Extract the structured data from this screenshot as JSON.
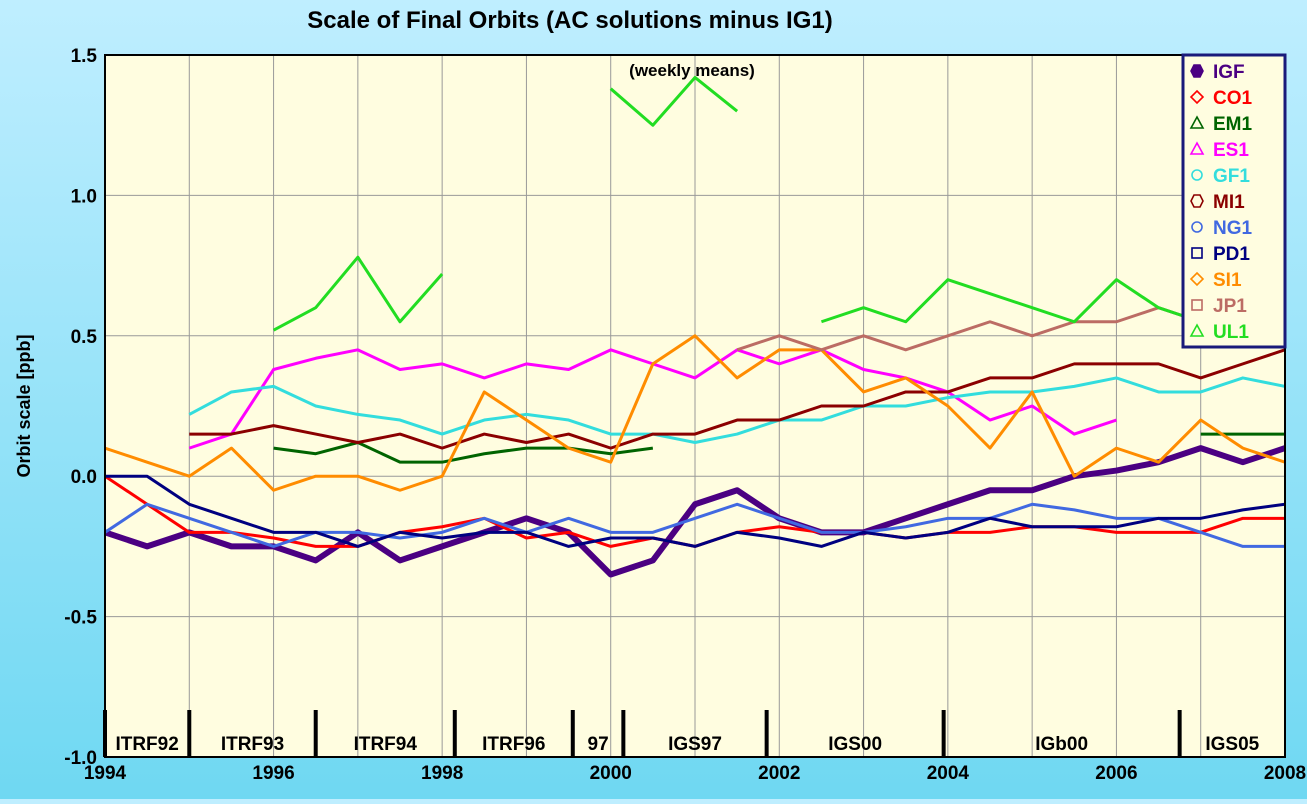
{
  "chart_data": {
    "type": "line",
    "title": "Scale of Final Orbits (AC solutions minus IG1)",
    "annotation": "(weekly means)",
    "y_label": "Orbit scale [ppb]",
    "x": [
      1994,
      1994.5,
      1995,
      1995.5,
      1996,
      1996.5,
      1997,
      1997.5,
      1998,
      1998.5,
      1999,
      1999.5,
      2000,
      2000.5,
      2001,
      2001.5,
      2002,
      2002.5,
      2003,
      2003.5,
      2004,
      2004.5,
      2005,
      2005.5,
      2006,
      2006.5,
      2007,
      2007.5,
      2008
    ],
    "series": [
      {
        "name": "IGF",
        "color": "#4b0082",
        "marker": "hexagon",
        "filled": true,
        "values": [
          -0.2,
          -0.25,
          -0.2,
          -0.25,
          -0.25,
          -0.3,
          -0.2,
          -0.3,
          -0.25,
          -0.2,
          -0.15,
          -0.2,
          -0.35,
          -0.3,
          -0.1,
          -0.05,
          -0.15,
          -0.2,
          -0.2,
          -0.15,
          -0.1,
          -0.05,
          -0.05,
          0.0,
          0.02,
          0.05,
          0.1,
          0.05,
          0.1
        ]
      },
      {
        "name": "CO1",
        "color": "#ff0000",
        "marker": "diamond",
        "values": [
          0.0,
          -0.1,
          -0.2,
          -0.2,
          -0.22,
          -0.25,
          -0.25,
          -0.2,
          -0.18,
          -0.15,
          -0.22,
          -0.2,
          -0.25,
          -0.22,
          -0.25,
          -0.2,
          -0.18,
          -0.2,
          -0.2,
          -0.22,
          -0.2,
          -0.2,
          -0.18,
          -0.18,
          -0.2,
          -0.2,
          -0.2,
          -0.15,
          -0.15
        ]
      },
      {
        "name": "EM1",
        "color": "#006400",
        "marker": "triangle",
        "values": [
          null,
          null,
          null,
          null,
          0.1,
          0.08,
          0.12,
          0.05,
          0.05,
          0.08,
          0.1,
          0.1,
          0.08,
          0.1,
          null,
          null,
          null,
          null,
          null,
          null,
          null,
          null,
          null,
          null,
          null,
          null,
          0.15,
          0.15,
          0.15
        ]
      },
      {
        "name": "ES1",
        "color": "#ff00ff",
        "marker": "triangle",
        "values": [
          null,
          null,
          0.1,
          0.15,
          0.38,
          0.42,
          0.45,
          0.38,
          0.4,
          0.35,
          0.4,
          0.38,
          0.45,
          0.4,
          0.35,
          0.45,
          0.4,
          0.45,
          0.38,
          0.35,
          0.3,
          0.2,
          0.25,
          0.15,
          0.2,
          null,
          null,
          null,
          null
        ]
      },
      {
        "name": "GF1",
        "color": "#33dddd",
        "marker": "circle",
        "values": [
          null,
          null,
          0.22,
          0.3,
          0.32,
          0.25,
          0.22,
          0.2,
          0.15,
          0.2,
          0.22,
          0.2,
          0.15,
          0.15,
          0.12,
          0.15,
          0.2,
          0.2,
          0.25,
          0.25,
          0.28,
          0.3,
          0.3,
          0.32,
          0.35,
          0.3,
          0.3,
          0.35,
          0.32
        ]
      },
      {
        "name": "MI1",
        "color": "#8b0000",
        "marker": "hexagon",
        "values": [
          null,
          null,
          0.15,
          0.15,
          0.18,
          0.15,
          0.12,
          0.15,
          0.1,
          0.15,
          0.12,
          0.15,
          0.1,
          0.15,
          0.15,
          0.2,
          0.2,
          0.25,
          0.25,
          0.3,
          0.3,
          0.35,
          0.35,
          0.4,
          0.4,
          0.4,
          0.35,
          0.4,
          0.45
        ]
      },
      {
        "name": "NG1",
        "color": "#4169e1",
        "marker": "circle",
        "values": [
          -0.2,
          -0.1,
          -0.15,
          -0.2,
          -0.25,
          -0.2,
          -0.2,
          -0.22,
          -0.2,
          -0.15,
          -0.2,
          -0.15,
          -0.2,
          -0.2,
          -0.15,
          -0.1,
          -0.15,
          -0.2,
          -0.2,
          -0.18,
          -0.15,
          -0.15,
          -0.1,
          -0.12,
          -0.15,
          -0.15,
          -0.2,
          -0.25,
          -0.25
        ]
      },
      {
        "name": "PD1",
        "color": "#000080",
        "marker": "square",
        "values": [
          0.0,
          0.0,
          -0.1,
          -0.15,
          -0.2,
          -0.2,
          -0.25,
          -0.2,
          -0.22,
          -0.2,
          -0.2,
          -0.25,
          -0.22,
          -0.22,
          -0.25,
          -0.2,
          -0.22,
          -0.25,
          -0.2,
          -0.22,
          -0.2,
          -0.15,
          -0.18,
          -0.18,
          -0.18,
          -0.15,
          -0.15,
          -0.12,
          -0.1
        ]
      },
      {
        "name": "SI1",
        "color": "#ff8c00",
        "marker": "diamond",
        "values": [
          0.1,
          0.05,
          0.0,
          0.1,
          -0.05,
          0.0,
          0.0,
          -0.05,
          0.0,
          0.3,
          0.2,
          0.1,
          0.05,
          0.4,
          0.5,
          0.35,
          0.45,
          0.45,
          0.3,
          0.35,
          0.25,
          0.1,
          0.3,
          0.0,
          0.1,
          0.05,
          0.2,
          0.1,
          0.05
        ]
      },
      {
        "name": "JP1",
        "color": "#bc6c64",
        "marker": "square",
        "values": [
          null,
          null,
          null,
          null,
          null,
          null,
          null,
          null,
          null,
          null,
          null,
          null,
          null,
          null,
          null,
          0.45,
          0.5,
          0.45,
          0.5,
          0.45,
          0.5,
          0.55,
          0.5,
          0.55,
          0.55,
          0.6,
          0.55,
          0.6,
          0.6
        ]
      },
      {
        "name": "UL1",
        "color": "#22dd22",
        "marker": "triangle",
        "values": [
          null,
          null,
          null,
          null,
          0.52,
          0.6,
          0.78,
          0.55,
          0.72,
          null,
          null,
          null,
          1.38,
          1.25,
          1.42,
          1.3,
          null,
          0.55,
          0.6,
          0.55,
          0.7,
          0.65,
          0.6,
          0.55,
          0.7,
          0.6,
          0.55,
          null,
          null
        ]
      }
    ],
    "xlim": [
      1994,
      2008
    ],
    "xticks": [
      1994,
      1996,
      1998,
      2000,
      2002,
      2004,
      2006,
      2008
    ],
    "x_minor_ticks": [
      1995,
      1997,
      1999,
      2001,
      2003,
      2005,
      2007
    ],
    "ylim": [
      -1.0,
      1.5
    ],
    "yticks": [
      {
        "value": -1.0,
        "label": "-1.0"
      },
      -0.5,
      {
        "value": 0.0,
        "label": "0.0"
      },
      0.5,
      {
        "value": 1.0,
        "label": "1.0"
      },
      1.5
    ],
    "grid": true,
    "legend": "top-right",
    "frame_boundaries": [
      1994,
      1995,
      1996.5,
      1998.15,
      1999.55,
      2000.15,
      2001.85,
      2003.95,
      2006.75
    ],
    "frames": [
      "ITRF92",
      "ITRF93",
      "ITRF94",
      "ITRF96",
      "97",
      "IGS97",
      "IGS00",
      "IGb00",
      "IGS05"
    ]
  }
}
